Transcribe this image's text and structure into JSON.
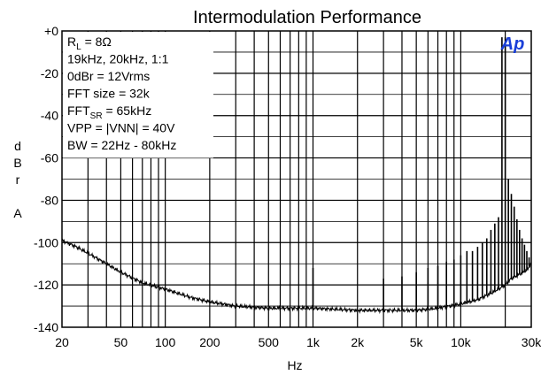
{
  "chart_data": {
    "type": "line",
    "title": "Intermodulation  Performance",
    "xlabel": "Hz",
    "ylabel": [
      "d",
      "B",
      "r",
      "",
      "A"
    ],
    "x_scale": "log",
    "xlim": [
      20,
      30000
    ],
    "ylim": [
      -140,
      0
    ],
    "x_ticks": [
      {
        "value": 20,
        "label": "20"
      },
      {
        "value": 50,
        "label": "50"
      },
      {
        "value": 100,
        "label": "100"
      },
      {
        "value": 200,
        "label": "200"
      },
      {
        "value": 500,
        "label": "500"
      },
      {
        "value": 1000,
        "label": "1k"
      },
      {
        "value": 2000,
        "label": "2k"
      },
      {
        "value": 5000,
        "label": "5k"
      },
      {
        "value": 10000,
        "label": "10k"
      },
      {
        "value": 30000,
        "label": "30k"
      }
    ],
    "y_ticks": [
      {
        "value": 0,
        "label": "+0"
      },
      {
        "value": -20,
        "label": "-20"
      },
      {
        "value": -40,
        "label": "-40"
      },
      {
        "value": -60,
        "label": "-60"
      },
      {
        "value": -80,
        "label": "-80"
      },
      {
        "value": -100,
        "label": "-100"
      },
      {
        "value": -120,
        "label": "-120"
      },
      {
        "value": -140,
        "label": "-140"
      }
    ],
    "grid": true,
    "logo": "Ap",
    "annotations": {
      "lines": [
        {
          "main": "R",
          "sub": "L",
          "rest": " = 8Ω"
        },
        {
          "main": "19kHz, 20kHz, 1:1",
          "sub": "",
          "rest": ""
        },
        {
          "main": "0dBr = 12Vrms",
          "sub": "",
          "rest": ""
        },
        {
          "main": "FFT size = 32k",
          "sub": "",
          "rest": ""
        },
        {
          "main": "FFT",
          "sub": "SR",
          "rest": " = 65kHz"
        },
        {
          "main": "VPP = |VNN| = 40V",
          "sub": "",
          "rest": ""
        },
        {
          "main": "BW = 22Hz - 80kHz",
          "sub": "",
          "rest": ""
        }
      ]
    },
    "series": [
      {
        "noise_floor": [
          [
            20,
            -99
          ],
          [
            25,
            -102
          ],
          [
            30,
            -105
          ],
          [
            40,
            -110
          ],
          [
            50,
            -114
          ],
          [
            70,
            -119
          ],
          [
            100,
            -122
          ],
          [
            150,
            -126
          ],
          [
            200,
            -128
          ],
          [
            300,
            -130
          ],
          [
            500,
            -131
          ],
          [
            700,
            -131
          ],
          [
            1000,
            -131
          ],
          [
            2000,
            -132
          ],
          [
            3000,
            -132
          ],
          [
            5000,
            -132
          ],
          [
            7000,
            -131
          ],
          [
            10000,
            -129
          ],
          [
            13000,
            -127
          ],
          [
            16000,
            -124
          ],
          [
            19000,
            -121
          ],
          [
            20000,
            -120
          ],
          [
            22000,
            -117
          ],
          [
            25000,
            -115
          ],
          [
            28000,
            -113
          ],
          [
            30000,
            -110
          ]
        ],
        "spikes": [
          [
            1000,
            -112
          ],
          [
            3000,
            -117
          ],
          [
            4000,
            -116
          ],
          [
            5000,
            -114
          ],
          [
            6000,
            -112
          ],
          [
            7000,
            -111
          ],
          [
            8000,
            -109
          ],
          [
            9000,
            -108
          ],
          [
            10000,
            -106
          ],
          [
            11000,
            -104
          ],
          [
            12000,
            -104
          ],
          [
            13000,
            -102
          ],
          [
            14000,
            -100
          ],
          [
            15000,
            -98
          ],
          [
            16000,
            -94
          ],
          [
            17000,
            -91
          ],
          [
            18000,
            -88
          ],
          [
            19000,
            -3
          ],
          [
            20000,
            -3
          ],
          [
            21000,
            -70
          ],
          [
            22000,
            -77
          ],
          [
            23000,
            -83
          ],
          [
            24000,
            -89
          ],
          [
            25000,
            -94
          ],
          [
            26000,
            -98
          ],
          [
            27000,
            -101
          ],
          [
            28000,
            -104
          ],
          [
            29000,
            -107
          ]
        ]
      }
    ]
  }
}
